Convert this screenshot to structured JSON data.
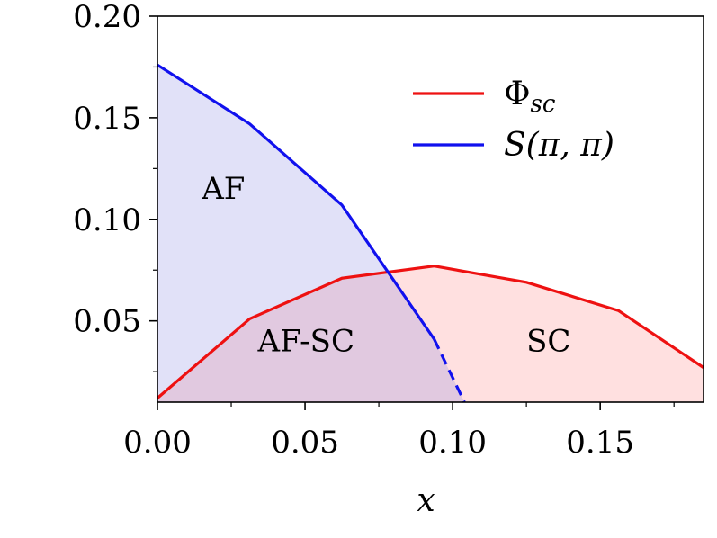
{
  "chart_data": {
    "type": "line",
    "title": "",
    "xlabel": "x",
    "ylabel": "",
    "xlim": [
      0.0,
      0.185
    ],
    "ylim": [
      0.01,
      0.2
    ],
    "x_ticks": [
      0.0,
      0.05,
      0.1,
      0.15
    ],
    "x_tick_labels": [
      "0.00",
      "0.05",
      "0.10",
      "0.15"
    ],
    "y_ticks": [
      0.05,
      0.1,
      0.15,
      0.2
    ],
    "y_tick_labels": [
      "0.05",
      "0.10",
      "0.15",
      "0.20"
    ],
    "grid": false,
    "legend_position": "top-right",
    "series": [
      {
        "name": "Φ_sc",
        "legend_main": "Φ",
        "legend_sub": "sc",
        "color": "#ee1111",
        "fill": "#ffe0e0",
        "line_style": "solid",
        "x": [
          0.0,
          0.03125,
          0.0625,
          0.09375,
          0.125,
          0.15625,
          0.185
        ],
        "y": [
          0.012,
          0.051,
          0.071,
          0.077,
          0.069,
          0.055,
          0.027
        ]
      },
      {
        "name": "S(π,π)",
        "legend_text": "S(π, π)",
        "color": "#1111ee",
        "fill": "#e2e2f8",
        "line_style": "solid",
        "x": [
          0.0,
          0.03125,
          0.0625,
          0.09375
        ],
        "y": [
          0.176,
          0.147,
          0.107,
          0.041
        ],
        "extrapolated": {
          "line_style": "dashed",
          "x": [
            0.09375,
            0.104
          ],
          "y": [
            0.041,
            0.01
          ]
        }
      }
    ],
    "regions": [
      {
        "label": "AF",
        "x": 0.015,
        "y": 0.11
      },
      {
        "label": "AF-SC",
        "x": 0.034,
        "y": 0.035
      },
      {
        "label": "SC",
        "x": 0.125,
        "y": 0.035
      }
    ]
  }
}
